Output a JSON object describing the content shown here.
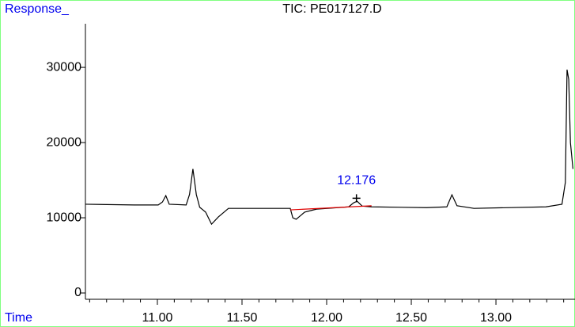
{
  "chart_data": {
    "type": "line",
    "title": "TIC: PE017127.D",
    "y_label": "Response_",
    "x_label": "Time",
    "xlim": [
      10.575,
      13.467
    ],
    "ylim": [
      -840,
      35800
    ],
    "xticks": [
      {
        "value": 11,
        "label": "11.00"
      },
      {
        "value": 11.5,
        "label": "11.50"
      },
      {
        "value": 12,
        "label": "12.00"
      },
      {
        "value": 12.5,
        "label": "12.50"
      },
      {
        "value": 13,
        "label": "13.00"
      }
    ],
    "xminorticks": [
      10.6,
      10.7,
      10.8,
      10.9,
      11.1,
      11.2,
      11.3,
      11.4,
      11.6,
      11.7,
      11.8,
      11.9,
      12.1,
      12.2,
      12.3,
      12.4,
      12.6,
      12.7,
      12.8,
      12.9,
      13.1,
      13.2,
      13.3,
      13.4
    ],
    "yticks": [
      0,
      10000,
      20000,
      30000
    ],
    "series": [
      {
        "name": "TIC",
        "color": "#000000",
        "x": [
          10.575,
          10.865,
          11.005,
          11.03,
          11.05,
          11.07,
          11.17,
          11.19,
          11.21,
          11.23,
          11.25,
          11.285,
          11.32,
          11.36,
          11.42,
          11.66,
          11.785,
          11.8,
          11.82,
          11.87,
          11.94,
          12.13,
          12.16,
          12.18,
          12.21,
          12.265,
          12.59,
          12.71,
          12.74,
          12.77,
          12.87,
          13.295,
          13.39,
          13.41,
          13.42,
          13.43,
          13.44,
          13.455
        ],
        "values": [
          11800,
          11700,
          11700,
          12100,
          12950,
          11800,
          11700,
          13100,
          16500,
          13100,
          11400,
          10750,
          9150,
          10100,
          11250,
          11250,
          11250,
          10000,
          9800,
          10750,
          11150,
          11450,
          12000,
          12200,
          11550,
          11450,
          11350,
          11450,
          13050,
          11600,
          11250,
          11450,
          11800,
          14700,
          29700,
          28400,
          20000,
          16500
        ]
      }
    ],
    "baseline": {
      "color": "#e00000",
      "x": [
        11.785,
        12.265
      ],
      "values": [
        11050,
        11600
      ]
    },
    "annotation": {
      "text": "12.176",
      "x": 12.176,
      "y": 12600,
      "color": "#0000ee"
    }
  }
}
